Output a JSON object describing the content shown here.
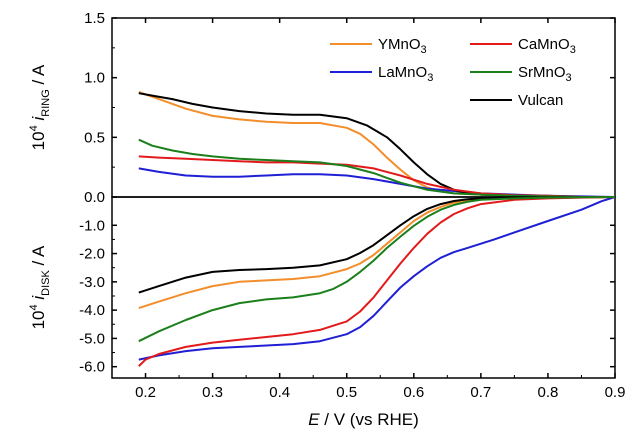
{
  "chart_data": {
    "type": "line",
    "xlabel": {
      "italic": "E",
      "rest": " / V (vs RHE)"
    },
    "xlim": [
      0.15,
      0.9
    ],
    "x_ticks": [
      "0.2",
      "0.3",
      "0.4",
      "0.5",
      "0.6",
      "0.7",
      "0.8",
      "0.9"
    ],
    "panels": [
      {
        "id": "ring",
        "ylabel": {
          "pre": "10",
          "sup": "4",
          "italic": "i",
          "sub": "RING",
          "post": " / A"
        },
        "ylim": [
          0,
          1.5
        ],
        "y_ticks": [
          "0.0",
          "0.5",
          "1.0",
          "1.5"
        ],
        "series": [
          {
            "name": "YMnO",
            "sub": "3",
            "color": "#f28e2b",
            "x": [
              0.19,
              0.22,
              0.26,
              0.3,
              0.34,
              0.38,
              0.42,
              0.46,
              0.5,
              0.52,
              0.54,
              0.56,
              0.58,
              0.6,
              0.62,
              0.64,
              0.66,
              0.7,
              0.75,
              0.8,
              0.85,
              0.9
            ],
            "y": [
              0.88,
              0.82,
              0.74,
              0.68,
              0.65,
              0.63,
              0.62,
              0.62,
              0.58,
              0.53,
              0.44,
              0.33,
              0.23,
              0.14,
              0.08,
              0.05,
              0.03,
              0.02,
              0.01,
              0.01,
              0.0,
              0.0
            ]
          },
          {
            "name": "LaMnO",
            "sub": "3",
            "color": "#1f1fd6",
            "x": [
              0.19,
              0.22,
              0.26,
              0.3,
              0.34,
              0.38,
              0.42,
              0.46,
              0.5,
              0.54,
              0.58,
              0.62,
              0.66,
              0.7,
              0.75,
              0.8,
              0.85,
              0.9
            ],
            "y": [
              0.24,
              0.21,
              0.18,
              0.17,
              0.17,
              0.18,
              0.19,
              0.19,
              0.18,
              0.15,
              0.11,
              0.07,
              0.05,
              0.03,
              0.02,
              0.01,
              0.005,
              0.0
            ]
          },
          {
            "name": "Vulcan",
            "sub": "",
            "color": "#000000",
            "x": [
              0.19,
              0.21,
              0.24,
              0.27,
              0.3,
              0.34,
              0.38,
              0.42,
              0.46,
              0.5,
              0.53,
              0.56,
              0.58,
              0.6,
              0.62,
              0.64,
              0.66,
              0.68,
              0.7,
              0.75,
              0.8,
              0.85,
              0.9
            ],
            "y": [
              0.87,
              0.85,
              0.82,
              0.78,
              0.75,
              0.72,
              0.7,
              0.69,
              0.69,
              0.66,
              0.6,
              0.5,
              0.4,
              0.29,
              0.19,
              0.11,
              0.06,
              0.03,
              0.02,
              0.01,
              0.005,
              0.0,
              0.0
            ]
          },
          {
            "name": "CaMnO",
            "sub": "3",
            "color": "#e31a1c",
            "x": [
              0.19,
              0.22,
              0.26,
              0.3,
              0.34,
              0.38,
              0.42,
              0.46,
              0.5,
              0.54,
              0.58,
              0.62,
              0.66,
              0.7,
              0.75,
              0.8,
              0.85,
              0.9
            ],
            "y": [
              0.34,
              0.33,
              0.32,
              0.31,
              0.3,
              0.29,
              0.29,
              0.28,
              0.27,
              0.24,
              0.18,
              0.11,
              0.06,
              0.03,
              0.015,
              0.01,
              0.0,
              0.0
            ]
          },
          {
            "name": "SrMnO",
            "sub": "3",
            "color": "#1b7f1b",
            "x": [
              0.19,
              0.21,
              0.24,
              0.27,
              0.3,
              0.34,
              0.38,
              0.42,
              0.46,
              0.5,
              0.54,
              0.58,
              0.62,
              0.66,
              0.7,
              0.75,
              0.8,
              0.85,
              0.9
            ],
            "y": [
              0.48,
              0.43,
              0.39,
              0.36,
              0.34,
              0.32,
              0.31,
              0.3,
              0.29,
              0.26,
              0.2,
              0.12,
              0.06,
              0.03,
              0.02,
              0.01,
              0.005,
              0.0,
              0.0
            ]
          }
        ]
      },
      {
        "id": "disk",
        "ylabel": {
          "pre": "10",
          "sup": "4",
          "italic": "i",
          "sub": "DISK",
          "post": " / A"
        },
        "ylim": [
          -6.4,
          0
        ],
        "y_ticks": [
          "-1.0",
          "-2.0",
          "-3.0",
          "-4.0",
          "-5.0",
          "-6.0"
        ],
        "series": [
          {
            "name": "YMnO",
            "sub": "3",
            "color": "#f28e2b",
            "x": [
              0.19,
              0.22,
              0.26,
              0.3,
              0.34,
              0.38,
              0.42,
              0.46,
              0.5,
              0.52,
              0.54,
              0.56,
              0.58,
              0.6,
              0.62,
              0.64,
              0.66,
              0.68,
              0.7,
              0.75,
              0.8,
              0.85,
              0.9
            ],
            "y": [
              -3.93,
              -3.7,
              -3.4,
              -3.15,
              -3.0,
              -2.95,
              -2.9,
              -2.8,
              -2.55,
              -2.35,
              -2.05,
              -1.65,
              -1.25,
              -0.85,
              -0.55,
              -0.35,
              -0.2,
              -0.12,
              -0.08,
              -0.04,
              -0.02,
              -0.01,
              0.0
            ]
          },
          {
            "name": "LaMnO",
            "sub": "3",
            "color": "#1f1fd6",
            "x": [
              0.19,
              0.22,
              0.26,
              0.3,
              0.34,
              0.38,
              0.42,
              0.46,
              0.5,
              0.52,
              0.54,
              0.56,
              0.58,
              0.6,
              0.62,
              0.64,
              0.66,
              0.68,
              0.7,
              0.72,
              0.75,
              0.8,
              0.85,
              0.88,
              0.9
            ],
            "y": [
              -5.75,
              -5.6,
              -5.45,
              -5.35,
              -5.3,
              -5.25,
              -5.2,
              -5.1,
              -4.85,
              -4.6,
              -4.2,
              -3.7,
              -3.2,
              -2.8,
              -2.45,
              -2.15,
              -1.95,
              -1.8,
              -1.65,
              -1.5,
              -1.25,
              -0.85,
              -0.45,
              -0.15,
              0.0
            ]
          },
          {
            "name": "Vulcan",
            "sub": "",
            "color": "#000000",
            "x": [
              0.19,
              0.22,
              0.26,
              0.3,
              0.34,
              0.38,
              0.42,
              0.46,
              0.5,
              0.52,
              0.54,
              0.56,
              0.58,
              0.6,
              0.62,
              0.64,
              0.66,
              0.68,
              0.7,
              0.75,
              0.8,
              0.85,
              0.9
            ],
            "y": [
              -3.38,
              -3.15,
              -2.85,
              -2.65,
              -2.58,
              -2.55,
              -2.5,
              -2.42,
              -2.2,
              -1.98,
              -1.7,
              -1.35,
              -1.0,
              -0.68,
              -0.42,
              -0.25,
              -0.14,
              -0.08,
              -0.05,
              -0.03,
              -0.02,
              -0.01,
              0.0
            ]
          },
          {
            "name": "CaMnO",
            "sub": "3",
            "color": "#e31a1c",
            "x": [
              0.19,
              0.2,
              0.22,
              0.26,
              0.3,
              0.34,
              0.38,
              0.42,
              0.46,
              0.5,
              0.52,
              0.54,
              0.56,
              0.58,
              0.6,
              0.62,
              0.64,
              0.66,
              0.68,
              0.7,
              0.75,
              0.8,
              0.85,
              0.9
            ],
            "y": [
              -5.98,
              -5.75,
              -5.55,
              -5.3,
              -5.15,
              -5.05,
              -4.95,
              -4.85,
              -4.7,
              -4.4,
              -4.05,
              -3.55,
              -2.95,
              -2.35,
              -1.8,
              -1.3,
              -0.9,
              -0.6,
              -0.4,
              -0.25,
              -0.1,
              -0.05,
              -0.02,
              0.0
            ]
          },
          {
            "name": "SrMnO",
            "sub": "3",
            "color": "#1b7f1b",
            "x": [
              0.19,
              0.22,
              0.26,
              0.3,
              0.34,
              0.38,
              0.42,
              0.46,
              0.48,
              0.5,
              0.52,
              0.54,
              0.56,
              0.58,
              0.6,
              0.62,
              0.64,
              0.66,
              0.68,
              0.7,
              0.75,
              0.8,
              0.85,
              0.9
            ],
            "y": [
              -5.1,
              -4.75,
              -4.35,
              -4.0,
              -3.75,
              -3.62,
              -3.55,
              -3.4,
              -3.25,
              -3.0,
              -2.65,
              -2.25,
              -1.8,
              -1.4,
              -1.02,
              -0.7,
              -0.45,
              -0.28,
              -0.17,
              -0.1,
              -0.05,
              -0.02,
              -0.01,
              0.0
            ]
          }
        ]
      }
    ],
    "legend": {
      "placement": "top-right of upper panel",
      "order": [
        "YMnO",
        "CaMnO",
        "LaMnO",
        "SrMnO",
        "Vulcan"
      ]
    }
  }
}
